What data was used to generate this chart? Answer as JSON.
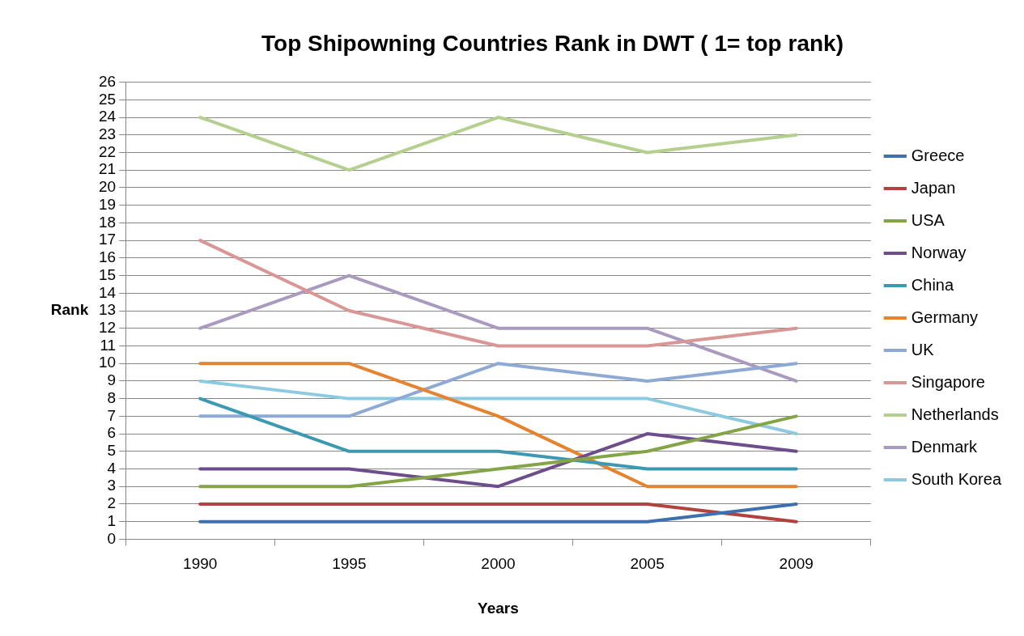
{
  "chart_data": {
    "type": "line",
    "title": "Top Shipowning Countries Rank in DWT ( 1= top rank)",
    "xlabel": "Years",
    "ylabel": "Rank",
    "categories": [
      "1990",
      "1995",
      "2000",
      "2005",
      "2009"
    ],
    "ylim": [
      0,
      26
    ],
    "yticks": [
      0,
      1,
      2,
      3,
      4,
      5,
      6,
      7,
      8,
      9,
      10,
      11,
      12,
      13,
      14,
      15,
      16,
      17,
      18,
      19,
      20,
      21,
      22,
      23,
      24,
      25,
      26
    ],
    "grid": "y",
    "legend": "right",
    "marker": "none",
    "line_style": "solid",
    "series": [
      {
        "name": "Greece",
        "color": "#3e6fae",
        "values": [
          1,
          1,
          1,
          1,
          2
        ]
      },
      {
        "name": "Japan",
        "color": "#b2423e",
        "values": [
          2,
          2,
          2,
          2,
          1
        ]
      },
      {
        "name": "USA",
        "color": "#84a545",
        "values": [
          3,
          3,
          4,
          5,
          7
        ]
      },
      {
        "name": "Norway",
        "color": "#6d4d8c",
        "values": [
          4,
          4,
          3,
          6,
          5
        ]
      },
      {
        "name": "China",
        "color": "#3b9ab2",
        "values": [
          8,
          5,
          5,
          4,
          4
        ]
      },
      {
        "name": "Germany",
        "color": "#e5832f",
        "values": [
          10,
          10,
          7,
          3,
          3
        ]
      },
      {
        "name": "UK",
        "color": "#8eaad4",
        "values": [
          7,
          7,
          10,
          9,
          10
        ]
      },
      {
        "name": "Singapore",
        "color": "#d99694",
        "values": [
          17,
          13,
          11,
          11,
          12
        ]
      },
      {
        "name": "Netherlands",
        "color": "#b5cf8f",
        "values": [
          24,
          21,
          24,
          22,
          23
        ]
      },
      {
        "name": "Denmark",
        "color": "#a99bc0",
        "values": [
          12,
          15,
          12,
          12,
          9
        ]
      },
      {
        "name": "South Korea",
        "color": "#8ccbdf",
        "values": [
          9,
          8,
          8,
          8,
          6
        ]
      }
    ]
  }
}
